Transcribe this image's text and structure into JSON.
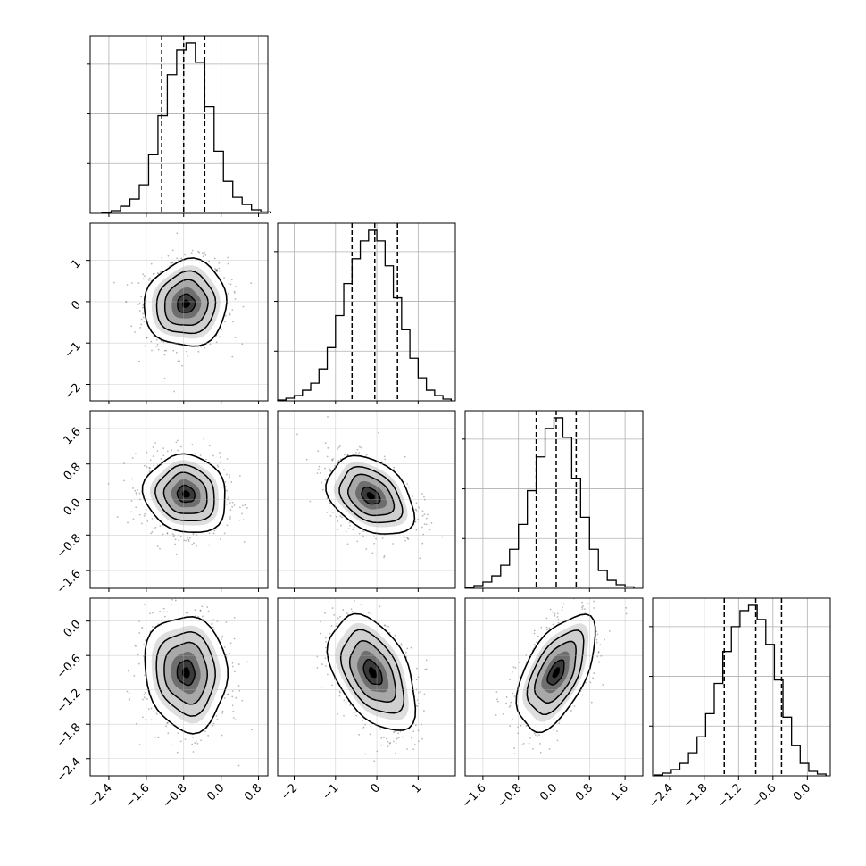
{
  "chart_data": [
    {
      "type": "histogram",
      "panel": "0,0",
      "xlim": [
        -2.8,
        1.0
      ],
      "bins": [
        -2.45,
        -2.25,
        -2.05,
        -1.85,
        -1.65,
        -1.45,
        -1.25,
        -1.05,
        -0.85,
        -0.65,
        -0.45,
        -0.25,
        -0.05,
        0.15,
        0.35,
        0.55,
        0.75,
        0.95
      ],
      "counts": [
        0.005,
        0.015,
        0.04,
        0.08,
        0.16,
        0.33,
        0.55,
        0.78,
        0.92,
        0.96,
        0.85,
        0.6,
        0.35,
        0.18,
        0.09,
        0.05,
        0.02,
        0.008
      ],
      "quantiles": [
        -1.27,
        -0.8,
        -0.35
      ]
    },
    {
      "type": "histogram",
      "panel": "1,1",
      "xlim": [
        -2.4,
        1.9
      ],
      "bins": [
        -2.3,
        -2.1,
        -1.9,
        -1.7,
        -1.5,
        -1.3,
        -1.1,
        -0.9,
        -0.7,
        -0.5,
        -0.3,
        -0.1,
        0.1,
        0.3,
        0.5,
        0.7,
        0.9,
        1.1,
        1.3,
        1.5,
        1.7
      ],
      "counts": [
        0.005,
        0.015,
        0.03,
        0.06,
        0.1,
        0.18,
        0.3,
        0.48,
        0.66,
        0.8,
        0.9,
        0.96,
        0.9,
        0.76,
        0.58,
        0.4,
        0.24,
        0.13,
        0.06,
        0.03,
        0.01
      ],
      "quantiles": [
        -0.6,
        -0.05,
        0.5
      ]
    },
    {
      "type": "histogram",
      "panel": "2,2",
      "xlim": [
        -2.0,
        2.0
      ],
      "bins": [
        -1.9,
        -1.7,
        -1.5,
        -1.3,
        -1.1,
        -0.9,
        -0.7,
        -0.5,
        -0.3,
        -0.1,
        0.1,
        0.3,
        0.5,
        0.7,
        0.9,
        1.1,
        1.3,
        1.5,
        1.7
      ],
      "counts": [
        0.005,
        0.015,
        0.035,
        0.07,
        0.13,
        0.22,
        0.36,
        0.55,
        0.74,
        0.9,
        0.96,
        0.85,
        0.62,
        0.4,
        0.22,
        0.1,
        0.045,
        0.02,
        0.008
      ],
      "quantiles": [
        -0.4,
        0.05,
        0.5
      ]
    },
    {
      "type": "histogram",
      "panel": "3,3",
      "xlim": [
        -2.7,
        0.4
      ],
      "bins": [
        -2.6,
        -2.45,
        -2.3,
        -2.15,
        -2.0,
        -1.85,
        -1.7,
        -1.55,
        -1.4,
        -1.25,
        -1.1,
        -0.95,
        -0.8,
        -0.65,
        -0.5,
        -0.35,
        -0.2,
        -0.05,
        0.1,
        0.25
      ],
      "counts": [
        0.005,
        0.015,
        0.035,
        0.07,
        0.13,
        0.22,
        0.35,
        0.52,
        0.7,
        0.84,
        0.93,
        0.96,
        0.88,
        0.74,
        0.54,
        0.33,
        0.17,
        0.07,
        0.025,
        0.01
      ],
      "quantiles": [
        -1.45,
        -0.9,
        -0.45
      ]
    },
    {
      "type": "scatter-contour",
      "panel": "1,0",
      "xlim": [
        -2.8,
        1.0
      ],
      "ylim": [
        -2.4,
        1.9
      ],
      "center": [
        -0.75,
        -0.05
      ],
      "spread": [
        0.42,
        0.5
      ],
      "rho": 0.05
    },
    {
      "type": "scatter-contour",
      "panel": "2,0",
      "xlim": [
        -2.8,
        1.0
      ],
      "ylim": [
        -2.0,
        2.0
      ],
      "center": [
        -0.75,
        0.12
      ],
      "spread": [
        0.42,
        0.42
      ],
      "rho": -0.1
    },
    {
      "type": "scatter-contour",
      "panel": "2,1",
      "xlim": [
        -2.4,
        1.9
      ],
      "ylim": [
        -2.0,
        2.0
      ],
      "center": [
        -0.15,
        0.08
      ],
      "spread": [
        0.5,
        0.42
      ],
      "rho": -0.35
    },
    {
      "type": "scatter-contour",
      "panel": "3,0",
      "xlim": [
        -2.8,
        1.0
      ],
      "ylim": [
        -2.7,
        0.4
      ],
      "center": [
        -0.75,
        -0.9
      ],
      "spread": [
        0.42,
        0.48
      ],
      "rho": -0.08
    },
    {
      "type": "scatter-contour",
      "panel": "3,1",
      "xlim": [
        -2.4,
        1.9
      ],
      "ylim": [
        -2.7,
        0.4
      ],
      "center": [
        -0.1,
        -0.9
      ],
      "spread": [
        0.5,
        0.48
      ],
      "rho": -0.45
    },
    {
      "type": "scatter-contour",
      "panel": "3,2",
      "xlim": [
        -2.0,
        2.0
      ],
      "ylim": [
        -2.7,
        0.4
      ],
      "center": [
        0.05,
        -0.9
      ],
      "spread": [
        0.42,
        0.48
      ],
      "rho": 0.55
    }
  ],
  "ticks": {
    "col0": [
      "−2.4",
      "−1.6",
      "−0.8",
      "0.0",
      "0.8"
    ],
    "col1": [
      "−2",
      "−1",
      "0",
      "1"
    ],
    "col2": [
      "−1.6",
      "−0.8",
      "0.0",
      "0.8",
      "1.6"
    ],
    "col3": [
      "−2.4",
      "−1.8",
      "−1.2",
      "−0.6",
      "0.0"
    ]
  }
}
